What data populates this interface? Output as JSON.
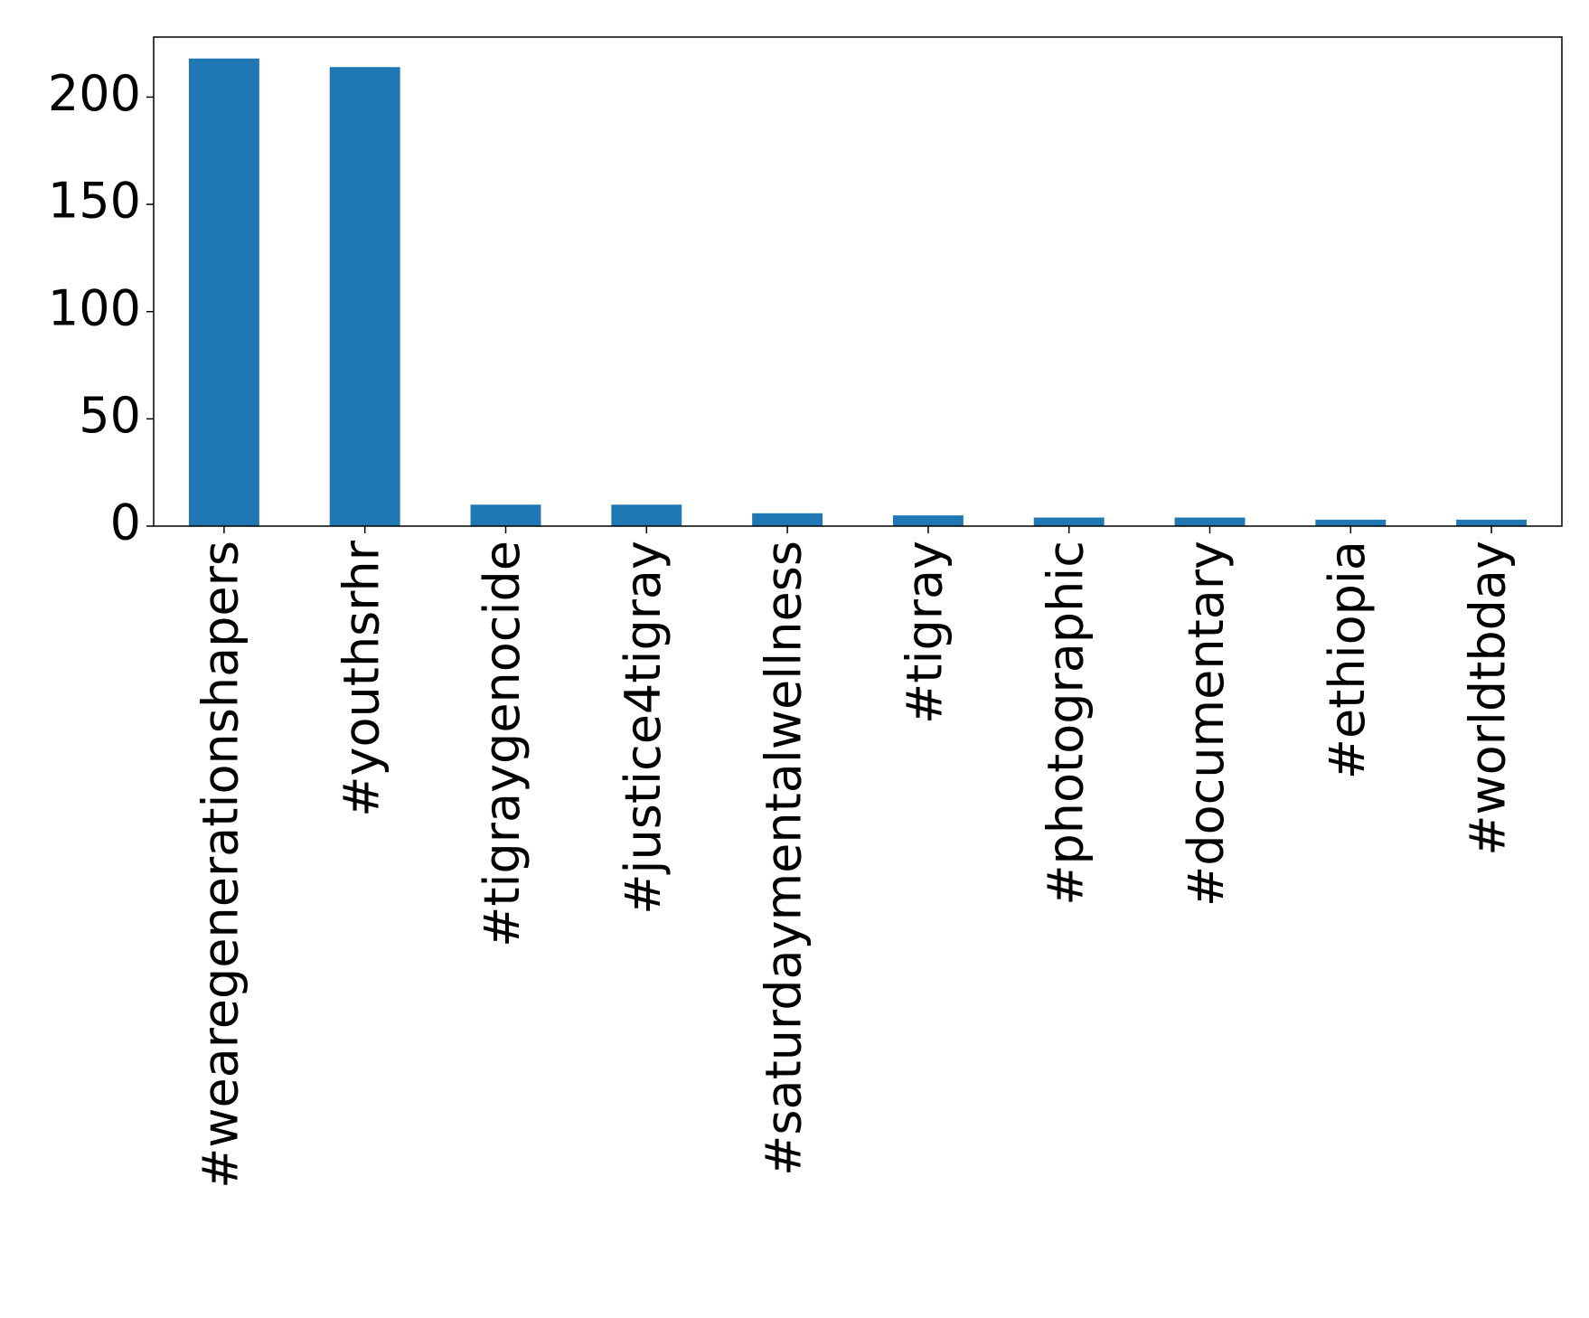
{
  "chart_data": {
    "type": "bar",
    "categories": [
      "#wearegenerationshapers",
      "#youthsrhr",
      "#tigraygenocide",
      "#justice4tigray",
      "#saturdaymentalwellness",
      "#tigray",
      "#photographic",
      "#documentary",
      "#ethiopia",
      "#worldtbday"
    ],
    "values": [
      218,
      214,
      10,
      10,
      6,
      5,
      4,
      4,
      3,
      3
    ],
    "color": "#1f77b4",
    "ylim": [
      0,
      228
    ],
    "yticks": [
      0,
      50,
      100,
      150,
      200
    ],
    "grid": false
  }
}
